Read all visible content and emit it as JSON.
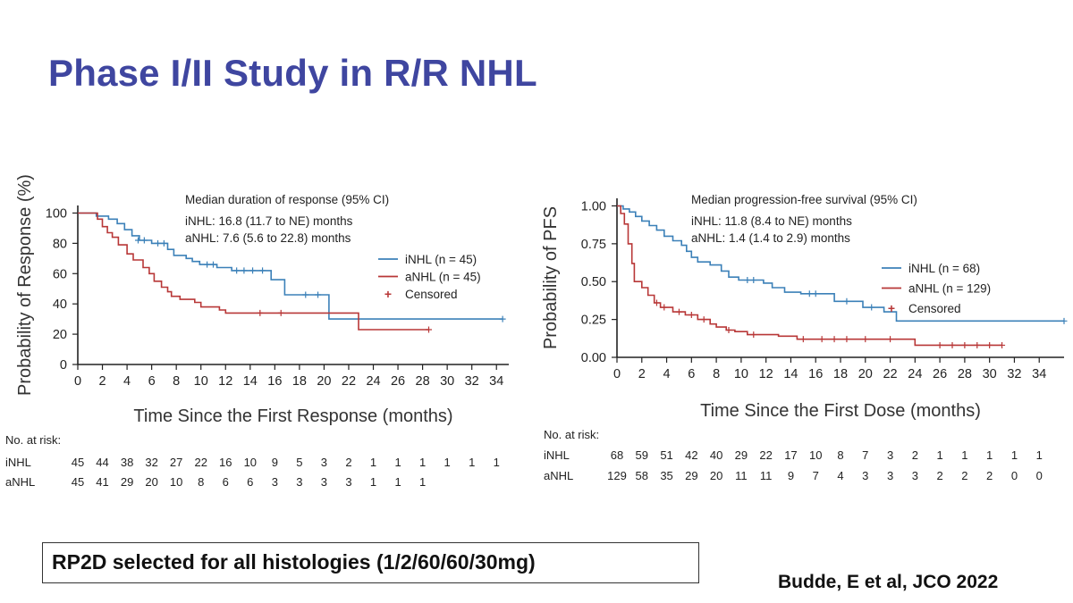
{
  "slide": {
    "title": "Phase I/II Study in R/R NHL",
    "callout": "RP2D selected for all histologies (1/2/60/60/30mg)",
    "citation": "Budde, E et al, JCO 2022"
  },
  "chart_data": [
    {
      "type": "line",
      "ylabel": "Probability of Response (%)",
      "xlabel": "Time Since the First Response (months)",
      "xlim": [
        0,
        35
      ],
      "ylim": [
        0,
        105
      ],
      "xticks": [
        0,
        2,
        4,
        6,
        8,
        10,
        12,
        14,
        16,
        18,
        20,
        22,
        24,
        26,
        28,
        30,
        32,
        34
      ],
      "yticks": [
        0,
        20,
        40,
        60,
        80,
        100
      ],
      "ytick_labels": [
        "0",
        "20",
        "40",
        "60",
        "80",
        "100"
      ],
      "annotation": {
        "heading": "Median duration of response (95% CI)",
        "lines": [
          "iNHL: 16.8 (11.7 to NE) months",
          "aNHL: 7.6 (5.6 to 22.8) months"
        ]
      },
      "legend": {
        "position": "right",
        "entries": [
          "iNHL (n = 45)",
          "aNHL (n = 45)"
        ],
        "censored_label": "Censored",
        "censored_symbol": "+"
      },
      "series": [
        {
          "name": "iNHL",
          "color": "#3b80b8",
          "steps": [
            [
              0,
              100
            ],
            [
              1.5,
              98
            ],
            [
              2.5,
              96
            ],
            [
              3.2,
              93
            ],
            [
              3.8,
              89
            ],
            [
              4.4,
              85
            ],
            [
              5,
              82
            ],
            [
              6,
              80
            ],
            [
              7.3,
              76
            ],
            [
              7.8,
              72
            ],
            [
              8.8,
              70
            ],
            [
              9.3,
              68
            ],
            [
              9.9,
              66
            ],
            [
              11.3,
              64
            ],
            [
              12.5,
              62
            ],
            [
              15.7,
              56
            ],
            [
              16.8,
              46
            ],
            [
              20.4,
              30
            ],
            [
              34.5,
              30
            ]
          ],
          "censored": [
            [
              4.9,
              82
            ],
            [
              5.4,
              82
            ],
            [
              6.5,
              80
            ],
            [
              7,
              80
            ],
            [
              10.5,
              66
            ],
            [
              11,
              66
            ],
            [
              12.9,
              62
            ],
            [
              13.5,
              62
            ],
            [
              14.2,
              62
            ],
            [
              15,
              62
            ],
            [
              18.5,
              46
            ],
            [
              19.5,
              46
            ],
            [
              34.5,
              30
            ]
          ]
        },
        {
          "name": "aNHL",
          "color": "#b83737",
          "steps": [
            [
              0,
              100
            ],
            [
              1.6,
              96
            ],
            [
              2,
              91
            ],
            [
              2.4,
              87
            ],
            [
              2.8,
              84
            ],
            [
              3.3,
              79
            ],
            [
              4,
              73
            ],
            [
              4.5,
              69
            ],
            [
              5.3,
              64
            ],
            [
              5.8,
              60
            ],
            [
              6.2,
              55
            ],
            [
              6.8,
              51
            ],
            [
              7.3,
              48
            ],
            [
              7.6,
              45
            ],
            [
              8.3,
              43
            ],
            [
              9.5,
              41
            ],
            [
              10,
              38
            ],
            [
              11.5,
              36
            ],
            [
              12,
              34
            ],
            [
              22.8,
              23
            ],
            [
              28.5,
              23
            ]
          ],
          "censored": [
            [
              14.8,
              34
            ],
            [
              16.5,
              34
            ],
            [
              28.5,
              23
            ]
          ]
        }
      ],
      "risk_table": {
        "header": "No. at risk:",
        "rows": [
          {
            "label": "iNHL",
            "values": [
              "45",
              "44",
              "38",
              "32",
              "27",
              "22",
              "16",
              "10",
              "9",
              "5",
              "3",
              "2",
              "1",
              "1",
              "1",
              "1",
              "1",
              "1"
            ]
          },
          {
            "label": "aNHL",
            "values": [
              "45",
              "41",
              "29",
              "20",
              "10",
              "8",
              "6",
              "6",
              "3",
              "3",
              "3",
              "3",
              "1",
              "1",
              "1"
            ]
          }
        ]
      }
    },
    {
      "type": "line",
      "ylabel": "Probability of PFS",
      "xlabel": "Time Since the First Dose (months)",
      "xlim": [
        0,
        36
      ],
      "ylim": [
        0,
        1.05
      ],
      "xticks": [
        0,
        2,
        4,
        6,
        8,
        10,
        12,
        14,
        16,
        18,
        20,
        22,
        24,
        26,
        28,
        30,
        32,
        34
      ],
      "yticks": [
        0,
        0.25,
        0.5,
        0.75,
        1.0
      ],
      "ytick_labels": [
        "0.00",
        "0.25",
        "0.50",
        "0.75",
        "1.00"
      ],
      "annotation": {
        "heading": "Median progression-free survival (95% CI)",
        "lines": [
          "iNHL: 11.8 (8.4 to NE) months",
          "aNHL: 1.4 (1.4 to 2.9) months"
        ]
      },
      "legend": {
        "position": "right",
        "entries": [
          "iNHL (n = 68)",
          "aNHL (n = 129)"
        ],
        "censored_label": "Censored",
        "censored_symbol": "+"
      },
      "series": [
        {
          "name": "iNHL",
          "color": "#3b80b8",
          "steps": [
            [
              0,
              1.0
            ],
            [
              0.5,
              0.98
            ],
            [
              1,
              0.96
            ],
            [
              1.5,
              0.93
            ],
            [
              2,
              0.9
            ],
            [
              2.6,
              0.87
            ],
            [
              3.2,
              0.84
            ],
            [
              3.8,
              0.8
            ],
            [
              4.5,
              0.77
            ],
            [
              5.2,
              0.74
            ],
            [
              5.6,
              0.7
            ],
            [
              6,
              0.66
            ],
            [
              6.5,
              0.63
            ],
            [
              7.5,
              0.61
            ],
            [
              8.4,
              0.57
            ],
            [
              9,
              0.53
            ],
            [
              9.8,
              0.51
            ],
            [
              11.8,
              0.49
            ],
            [
              12.5,
              0.46
            ],
            [
              13.5,
              0.43
            ],
            [
              14.8,
              0.42
            ],
            [
              17.5,
              0.37
            ],
            [
              19.8,
              0.33
            ],
            [
              21.5,
              0.3
            ],
            [
              22.5,
              0.24
            ],
            [
              36,
              0.24
            ]
          ],
          "censored": [
            [
              10.5,
              0.51
            ],
            [
              11,
              0.51
            ],
            [
              15.5,
              0.42
            ],
            [
              16,
              0.42
            ],
            [
              18.5,
              0.37
            ],
            [
              20.5,
              0.33
            ],
            [
              36,
              0.24
            ]
          ]
        },
        {
          "name": "aNHL",
          "color": "#b83737",
          "steps": [
            [
              0,
              1.0
            ],
            [
              0.3,
              0.95
            ],
            [
              0.6,
              0.88
            ],
            [
              0.9,
              0.75
            ],
            [
              1.2,
              0.62
            ],
            [
              1.4,
              0.5
            ],
            [
              2,
              0.46
            ],
            [
              2.5,
              0.41
            ],
            [
              3,
              0.36
            ],
            [
              3.5,
              0.33
            ],
            [
              4.5,
              0.3
            ],
            [
              5.5,
              0.28
            ],
            [
              6.5,
              0.25
            ],
            [
              7.5,
              0.22
            ],
            [
              8,
              0.2
            ],
            [
              8.8,
              0.18
            ],
            [
              9.5,
              0.17
            ],
            [
              10.5,
              0.15
            ],
            [
              13,
              0.14
            ],
            [
              14.5,
              0.12
            ],
            [
              16,
              0.12
            ],
            [
              24,
              0.08
            ],
            [
              31,
              0.08
            ]
          ],
          "censored": [
            [
              3.2,
              0.36
            ],
            [
              3.8,
              0.33
            ],
            [
              5,
              0.3
            ],
            [
              6,
              0.28
            ],
            [
              7,
              0.25
            ],
            [
              9,
              0.18
            ],
            [
              11,
              0.15
            ],
            [
              15,
              0.12
            ],
            [
              16.5,
              0.12
            ],
            [
              17.5,
              0.12
            ],
            [
              18.5,
              0.12
            ],
            [
              20,
              0.12
            ],
            [
              22,
              0.12
            ],
            [
              26,
              0.08
            ],
            [
              27,
              0.08
            ],
            [
              28,
              0.08
            ],
            [
              29,
              0.08
            ],
            [
              30,
              0.08
            ],
            [
              31,
              0.08
            ]
          ]
        }
      ],
      "risk_table": {
        "header": "No. at risk:",
        "rows": [
          {
            "label": "iNHL",
            "values": [
              "68",
              "59",
              "51",
              "42",
              "40",
              "29",
              "22",
              "17",
              "10",
              "8",
              "7",
              "3",
              "2",
              "1",
              "1",
              "1",
              "1",
              "1"
            ]
          },
          {
            "label": "aNHL",
            "values": [
              "129",
              "58",
              "35",
              "29",
              "20",
              "11",
              "11",
              "9",
              "7",
              "4",
              "3",
              "3",
              "3",
              "2",
              "2",
              "2",
              "0",
              "0"
            ]
          }
        ]
      }
    }
  ]
}
